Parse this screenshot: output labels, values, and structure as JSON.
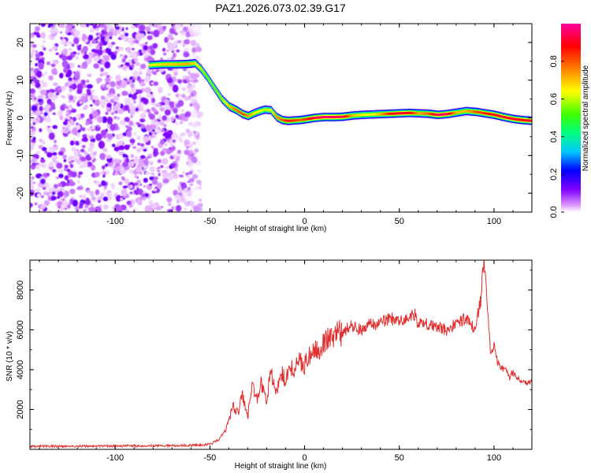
{
  "chart_data": [
    {
      "type": "heatmap",
      "title": "PAZ1.2026.073.02.39.G17",
      "xlabel": "Height of straight line (km)",
      "ylabel": "Frequency (Hz)",
      "xlim": [
        -145,
        120
      ],
      "ylim": [
        -25,
        25
      ],
      "xticks": [
        -100,
        -50,
        0,
        50,
        100
      ],
      "yticks": [
        -20,
        -10,
        0,
        10,
        20
      ],
      "colorbar": {
        "label": "Normalized spectral amplitude",
        "range": [
          0,
          1
        ],
        "ticks": [
          "0.0",
          "0.2",
          "0.4",
          "0.6",
          "0.8"
        ],
        "tick_values": [
          0.0,
          0.2,
          0.4,
          0.6,
          0.8
        ],
        "colors": [
          "#ffffff",
          "#d890ff",
          "#8000ff",
          "#0000ff",
          "#00c8ff",
          "#00ff80",
          "#40ff00",
          "#ffff00",
          "#ff8000",
          "#ff0000",
          "#ff00a0"
        ]
      },
      "ridge_frequency": {
        "x": [
          -82,
          -75,
          -68,
          -62,
          -58,
          -55,
          -52,
          -48,
          -44,
          -40,
          -36,
          -33,
          -30,
          -27,
          -24,
          -21,
          -18,
          -15,
          -12,
          -9,
          -6,
          -3,
          0,
          5,
          10,
          15,
          20,
          25,
          30,
          35,
          40,
          45,
          50,
          55,
          60,
          65,
          70,
          75,
          80,
          85,
          90,
          95,
          100,
          105,
          110,
          115,
          120
        ],
        "y": [
          14,
          14.2,
          14.2,
          14.3,
          14.5,
          13,
          11,
          8,
          5,
          3,
          2,
          1,
          0.5,
          1.2,
          1.8,
          2.2,
          2,
          0.2,
          -0.6,
          -0.8,
          -0.7,
          -0.6,
          -0.4,
          0,
          0.2,
          0.2,
          0.3,
          0.6,
          0.8,
          0.9,
          1,
          1.1,
          1.2,
          1.3,
          1.2,
          1.1,
          0.8,
          1,
          1.4,
          1.8,
          1.6,
          1.2,
          0.8,
          0.2,
          -0.3,
          -0.6,
          -0.8
        ]
      },
      "ridge_amplitude": [
        0.62,
        0.68,
        0.7,
        0.72,
        0.66,
        0.6,
        0.55,
        0.55,
        0.58,
        0.7,
        0.78,
        0.82,
        0.74,
        0.66,
        0.62,
        0.6,
        0.62,
        0.75,
        0.8,
        0.86,
        0.84,
        0.8,
        0.82,
        0.94,
        0.96,
        0.96,
        0.94,
        0.7,
        0.65,
        0.62,
        0.72,
        0.88,
        0.92,
        0.9,
        0.72,
        0.8,
        0.95,
        0.95,
        0.7,
        0.7,
        0.8,
        0.85,
        0.9,
        0.92,
        0.92,
        0.9,
        0.92
      ],
      "noise_region_x": [
        -145,
        -55
      ]
    },
    {
      "type": "line",
      "xlabel": "Height of straight line (km)",
      "ylabel": "SNR (10 * v/v)",
      "xlim": [
        -145,
        120
      ],
      "ylim": [
        0,
        9500
      ],
      "xticks": [
        -100,
        -50,
        0,
        50,
        100
      ],
      "yticks": [
        2000,
        4000,
        6000,
        8000
      ],
      "color": "#e03030",
      "series": [
        {
          "name": "SNR",
          "x": [
            -145,
            -120,
            -100,
            -80,
            -60,
            -50,
            -45,
            -42,
            -40,
            -38,
            -35,
            -33,
            -30,
            -28,
            -25,
            -23,
            -20,
            -18,
            -15,
            -12,
            -10,
            -8,
            -5,
            -3,
            0,
            3,
            5,
            8,
            10,
            15,
            20,
            25,
            30,
            35,
            40,
            45,
            50,
            55,
            58,
            60,
            65,
            70,
            75,
            80,
            85,
            88,
            90,
            93,
            94,
            95,
            96,
            97,
            98,
            100,
            102,
            104,
            106,
            108,
            110,
            112,
            115,
            118,
            120
          ],
          "y": [
            150,
            160,
            170,
            180,
            200,
            250,
            500,
            900,
            1400,
            2200,
            1800,
            2800,
            1600,
            3200,
            2600,
            3400,
            2400,
            3800,
            3000,
            3800,
            3400,
            4300,
            3900,
            4600,
            4200,
            4800,
            4900,
            5100,
            5500,
            5600,
            5900,
            6200,
            6000,
            6300,
            6300,
            6600,
            6400,
            6600,
            6800,
            6300,
            6300,
            6100,
            6000,
            6300,
            6600,
            6200,
            6000,
            7500,
            8800,
            9300,
            8200,
            6500,
            5000,
            5200,
            4400,
            4100,
            4000,
            3600,
            3900,
            3600,
            3500,
            3300,
            3500
          ]
        }
      ]
    }
  ]
}
